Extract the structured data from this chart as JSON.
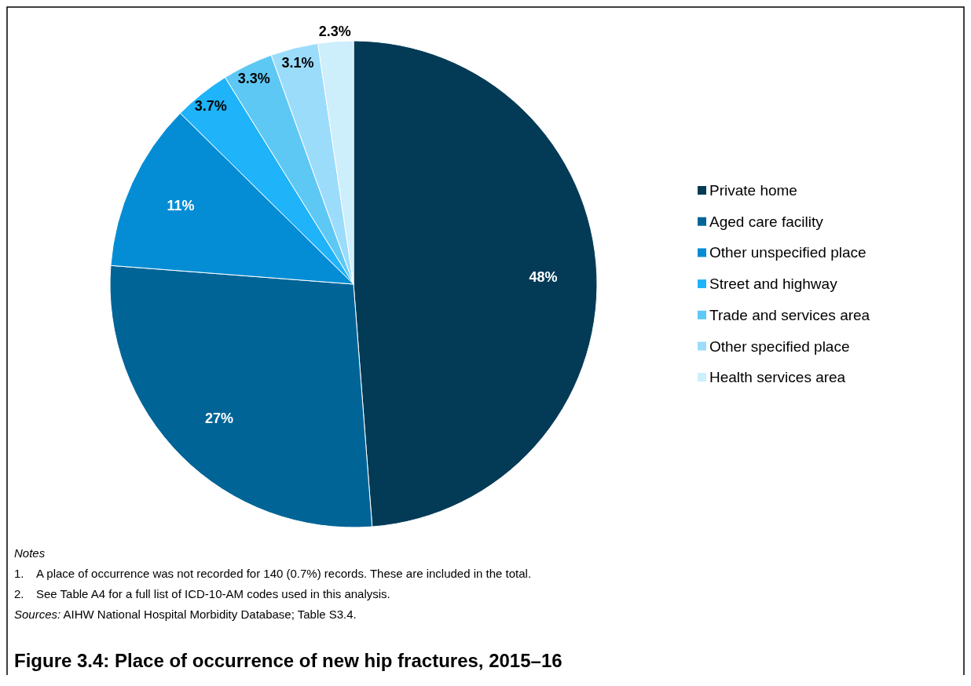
{
  "chart_data": {
    "type": "pie",
    "title": "Figure 3.4: Place of occurrence of new hip fractures, 2015–16",
    "categories": [
      "Private home",
      "Aged care facility",
      "Other unspecified place",
      "Street and highway",
      "Trade and services area",
      "Other specified place",
      "Health services area"
    ],
    "values": [
      48,
      27,
      11,
      3.7,
      3.3,
      3.1,
      2.3
    ],
    "colors": [
      "#033b57",
      "#016497",
      "#048dd5",
      "#1fb3f9",
      "#5ec8f4",
      "#9bdcfb",
      "#cdeefb"
    ],
    "value_labels": [
      "48%",
      "27%",
      "11%",
      "3.7%",
      "3.3%",
      "3.1%",
      "2.3%"
    ],
    "legend": "right",
    "annotations": [
      "Notes",
      "1.\tA place of occurrence was not recorded for 140 (0.7%) records. These are included in the total.",
      "2.\tSee Table A4 for a full list of ICD-10-AM codes used in this analysis.",
      "Sources: AIHW National Hospital Morbidity Database; Table S3.4."
    ]
  }
}
